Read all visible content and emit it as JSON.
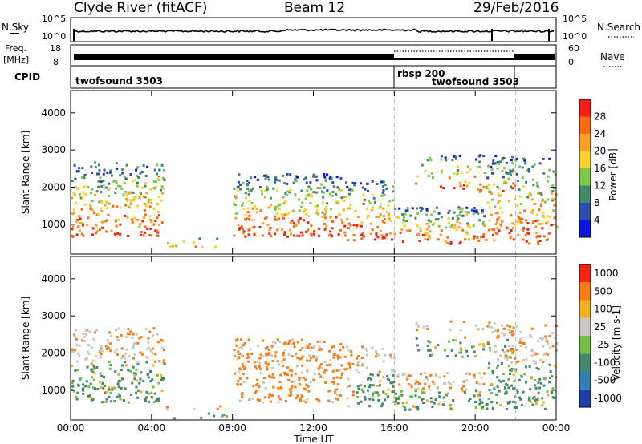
{
  "header": {
    "station": "Clyde River (fitACF)",
    "beam": "Beam 12",
    "date": "29/Feb/2016"
  },
  "nsky_panel": {
    "left_label": "N.Sky",
    "left_ticks": [
      "10^5",
      "10^0"
    ],
    "right_label": "N.Search",
    "right_ticks": [
      "10^5",
      "10^0"
    ]
  },
  "freq_panel": {
    "left_label_line1": "Freq.",
    "left_label_line2": "[MHz]",
    "left_ticks": [
      "18",
      "8"
    ],
    "right_label": "Nave",
    "right_ticks": [
      "60",
      "0"
    ]
  },
  "cpid_panel": {
    "label": "CPID",
    "programs": [
      {
        "name": "twofsound 3503",
        "start_hour": 0
      },
      {
        "name": "rbsp 200",
        "start_hour": 16
      },
      {
        "name": "twofsound 3503",
        "start_hour": 22
      }
    ]
  },
  "chart_data": [
    {
      "type": "heatmap",
      "quantity": "Power",
      "ylabel": "Slant Range [km]",
      "ylim": [
        200,
        4600
      ],
      "y_ticks": [
        1000,
        2000,
        3000,
        4000
      ],
      "colorbar": {
        "label": "Power [dB]",
        "ticks": [
          4,
          8,
          12,
          16,
          20,
          24,
          28
        ],
        "colors": [
          "#0a14e8",
          "#2a4fb0",
          "#3f8a68",
          "#7cc94a",
          "#ffd22a",
          "#ffa020",
          "#ff6a10",
          "#ff1c10"
        ]
      }
    },
    {
      "type": "heatmap",
      "quantity": "Velocity",
      "ylabel": "Slant Range [km]",
      "ylim": [
        200,
        4600
      ],
      "y_ticks": [
        1000,
        2000,
        3000,
        4000
      ],
      "xlabel": "Time UT",
      "x_ticks": [
        "00:00",
        "04:00",
        "08:00",
        "12:00",
        "16:00",
        "20:00",
        "00:00"
      ],
      "colorbar": {
        "label": "Velocity [m s-1]",
        "ticks": [
          "1000",
          "500",
          "100",
          "25",
          "-25",
          "-100",
          "-500",
          "-1000"
        ],
        "colors": [
          "#2040b0",
          "#2f7fb0",
          "#3f8a68",
          "#70c040",
          "#c8c8c0",
          "#f0b020",
          "#ff7a10",
          "#ff2010"
        ]
      }
    }
  ]
}
